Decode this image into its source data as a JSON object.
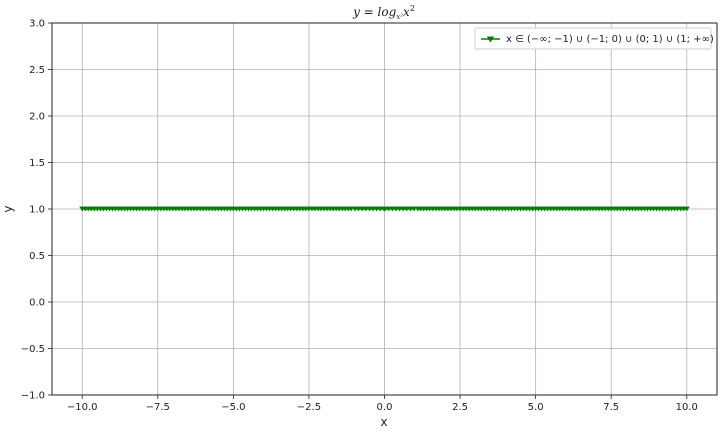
{
  "chart_data": {
    "type": "line",
    "title": "y = log_{x²} x²",
    "xlabel": "x",
    "ylabel": "y",
    "xlim": [
      -11.0,
      11.0
    ],
    "ylim": [
      -1.0,
      3.0
    ],
    "grid": true,
    "x_ticks": [
      -10.0,
      -7.5,
      -5.0,
      -2.5,
      0.0,
      2.5,
      5.0,
      7.5,
      10.0
    ],
    "x_tick_labels": [
      "−10.0",
      "−7.5",
      "−5.0",
      "−2.5",
      "0.0",
      "2.5",
      "5.0",
      "7.5",
      "10.0"
    ],
    "y_ticks": [
      -1.0,
      -0.5,
      0.0,
      0.5,
      1.0,
      1.5,
      2.0,
      2.5,
      3.0
    ],
    "y_tick_labels": [
      "−1.0",
      "−0.5",
      "0.0",
      "0.5",
      "1.0",
      "1.5",
      "2.0",
      "2.5",
      "3.0"
    ],
    "legend_position": "top-right",
    "series": [
      {
        "name": "x ∈ (−∞; −1) ∪ (−1; 0) ∪ (0; 1) ∪ (1; +∞)",
        "color": "#008000",
        "marker": "triangle-down",
        "segments": [
          {
            "x_start": -10.0,
            "x_end": -1.1,
            "y": 1.0,
            "n_points": 90
          },
          {
            "x_start": -0.98,
            "x_end": -0.02,
            "y": 1.0,
            "n_points": 9
          },
          {
            "x_start": 0.02,
            "x_end": 0.98,
            "y": 1.0,
            "n_points": 9
          },
          {
            "x_start": 1.1,
            "x_end": 10.0,
            "y": 1.0,
            "n_points": 90
          }
        ]
      }
    ]
  }
}
